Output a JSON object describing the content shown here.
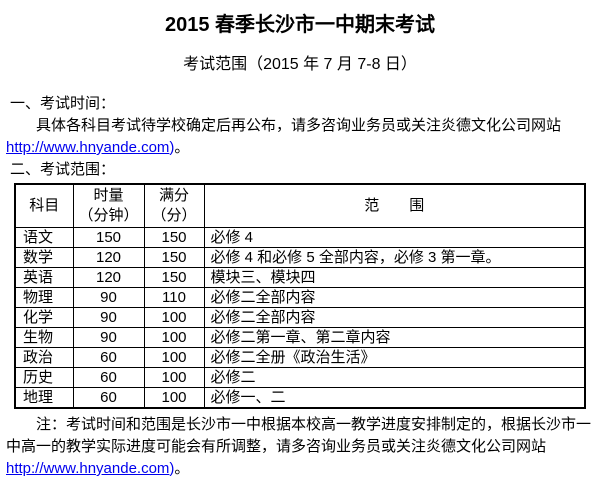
{
  "page": {
    "title": "2015 春季长沙市一中期末考试",
    "subtitle": "考试范围（2015 年 7 月 7-8 日）"
  },
  "section1": {
    "heading": "一、考试时间：",
    "body": "具体各科目考试待学校确定后再公布，请多咨询业务员或关注炎德文化公司网站 ",
    "link_text": "http://www.hnyande.com",
    "link_suffix": ")",
    "sentence_end": "。"
  },
  "section2": {
    "heading": "二、考试范围："
  },
  "table": {
    "headers": {
      "subject": "科目",
      "duration_line1": "时量",
      "duration_line2": "（分钟）",
      "score_line1": "满分",
      "score_line2": "（分）",
      "scope": "范　　围"
    },
    "rows": [
      {
        "subject": "语文",
        "duration": "150",
        "score": "150",
        "scope": "必修 4"
      },
      {
        "subject": "数学",
        "duration": "120",
        "score": "150",
        "scope": "必修 4 和必修 5 全部内容，必修 3 第一章。"
      },
      {
        "subject": "英语",
        "duration": "120",
        "score": "150",
        "scope": "模块三、模块四"
      },
      {
        "subject": "物理",
        "duration": "90",
        "score": "110",
        "scope": "必修二全部内容"
      },
      {
        "subject": "化学",
        "duration": "90",
        "score": "100",
        "scope": "必修二全部内容"
      },
      {
        "subject": "生物",
        "duration": "90",
        "score": "100",
        "scope": "必修二第一章、第二章内容"
      },
      {
        "subject": "政治",
        "duration": "60",
        "score": "100",
        "scope": "必修二全册《政治生活》"
      },
      {
        "subject": "历史",
        "duration": "60",
        "score": "100",
        "scope": "必修二"
      },
      {
        "subject": "地理",
        "duration": "60",
        "score": "100",
        "scope": "必修一、二"
      }
    ]
  },
  "note": {
    "body": "注：考试时间和范围是长沙市一中根据本校高一教学进度安排制定的，根据长沙市一中高一的教学实际进度可能会有所调整，请多咨询业务员或关注炎德文化公司网站 ",
    "link_text": "http://www.hnyande.com",
    "link_suffix": ")",
    "sentence_end": "。"
  },
  "colors": {
    "link": "#0000EE",
    "text": "#000000",
    "border": "#000000",
    "background": "#FFFFFF"
  }
}
